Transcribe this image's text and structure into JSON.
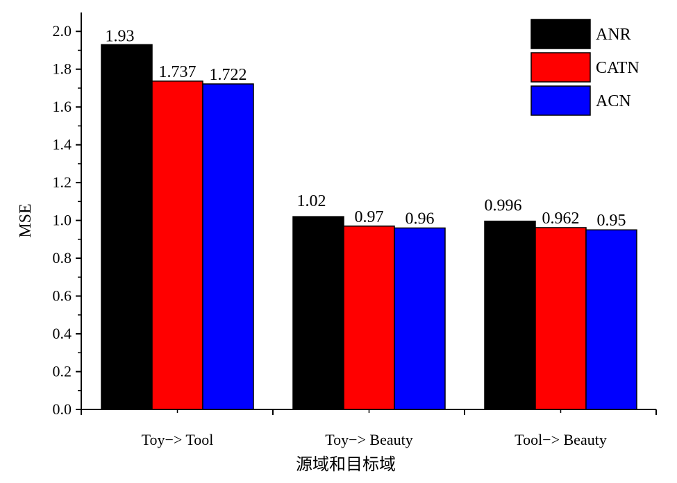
{
  "chart_data": {
    "type": "bar",
    "title": "",
    "xlabel": "源域和目标域",
    "ylabel": "MSE",
    "ylim": [
      0,
      2.1
    ],
    "yticks": [
      "0.0",
      "0.2",
      "0.4",
      "0.6",
      "0.8",
      "1.0",
      "1.2",
      "1.4",
      "1.6",
      "1.8",
      "2.0"
    ],
    "categories": [
      "Toy−> Tool",
      "Toy−> Beauty",
      "Tool−> Beauty"
    ],
    "series": [
      {
        "name": "ANR",
        "color": "#000000",
        "values": [
          1.93,
          1.02,
          0.996
        ],
        "labels": [
          "1.93",
          "1.02",
          "0.996"
        ]
      },
      {
        "name": "CATN",
        "color": "#ff0000",
        "values": [
          1.737,
          0.97,
          0.962
        ],
        "labels": [
          "1.737",
          "0.97",
          "0.962"
        ]
      },
      {
        "name": "ACN",
        "color": "#0000ff",
        "values": [
          1.722,
          0.96,
          0.95
        ],
        "labels": [
          "1.722",
          "0.96",
          "0.95"
        ]
      }
    ],
    "legend_position": "top-right",
    "grid": false
  }
}
